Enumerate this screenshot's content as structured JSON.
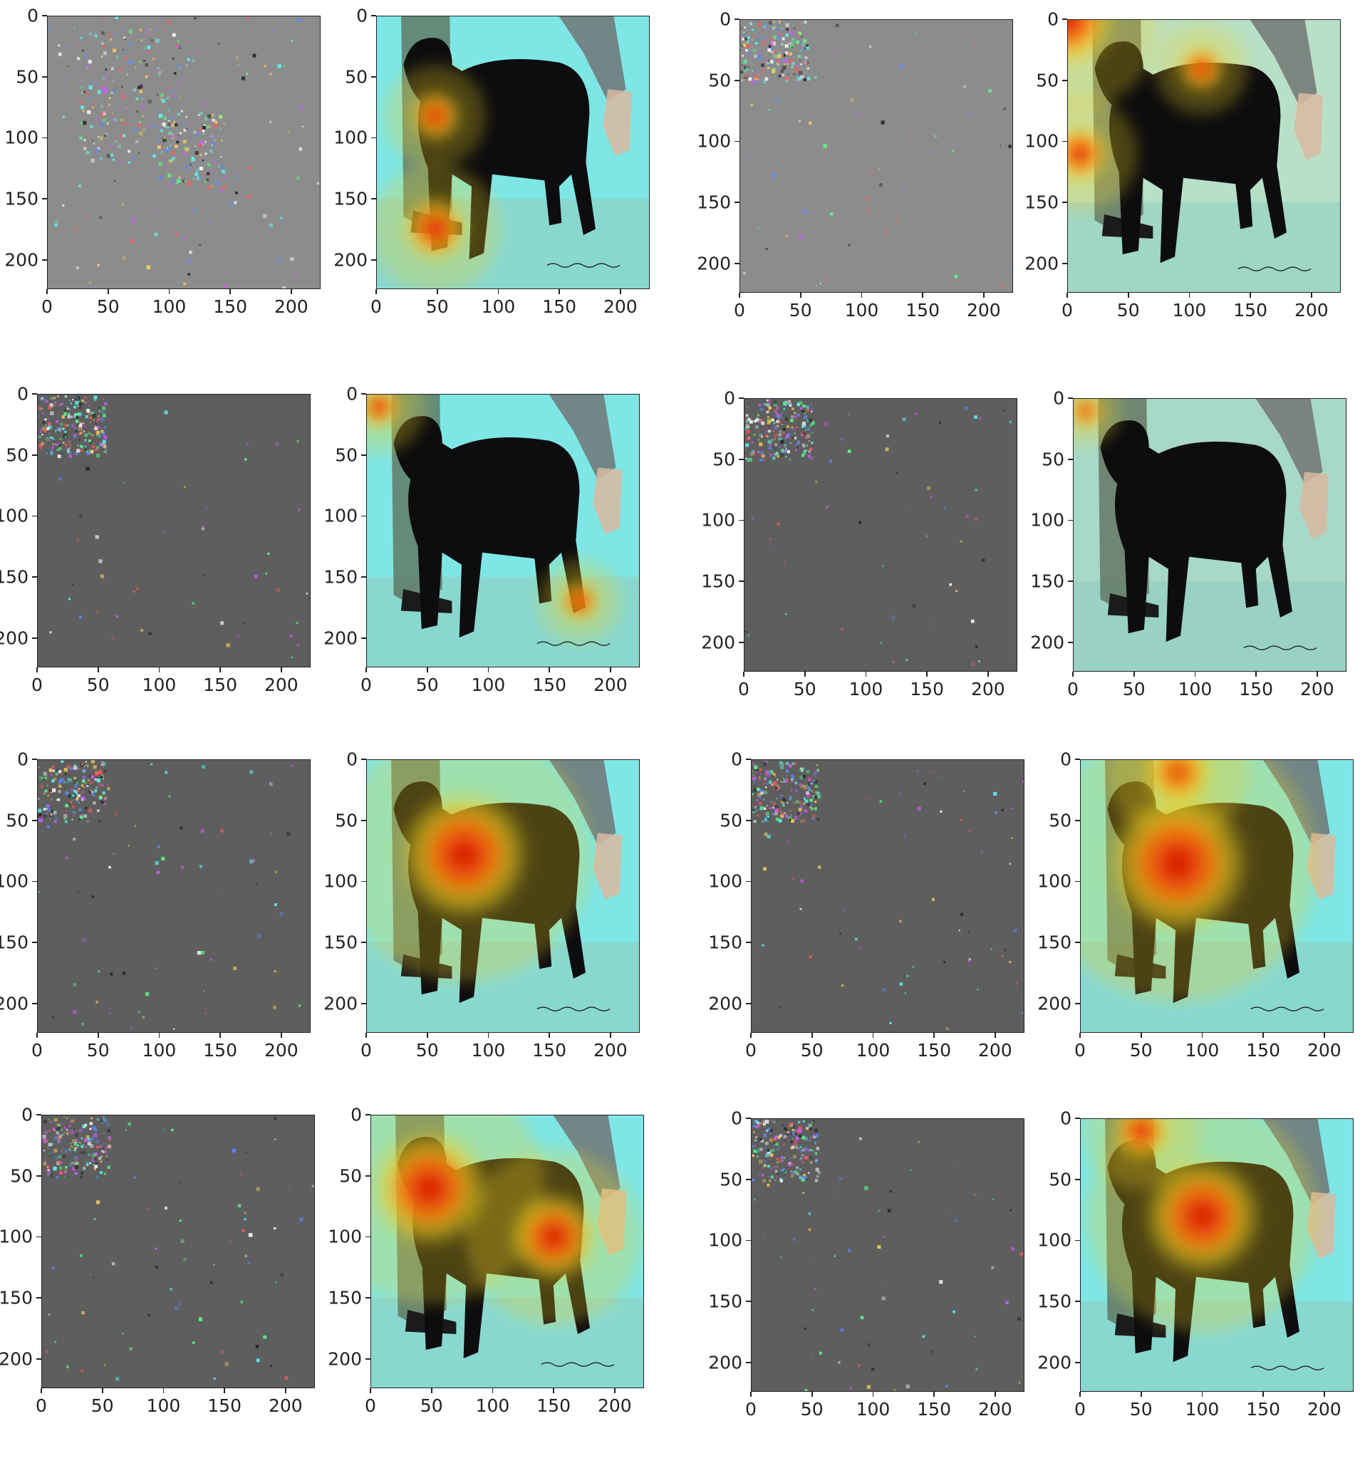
{
  "figure": {
    "panel_kinds": [
      "gradient-noise",
      "heatmap-overlay"
    ],
    "axis_ticks": [
      "0",
      "50",
      "100",
      "150",
      "200"
    ],
    "axis_max": 224,
    "tick_values": [
      0,
      50,
      100,
      150,
      200
    ],
    "colors": {
      "noise_gray_light": "#8c8c8c",
      "noise_gray_dark": "#5e5e5e",
      "heat_red": "#d40000",
      "heat_yellow": "#f0d020",
      "heat_cyan": "#7fe6e6",
      "dog": "#0d0d0f",
      "floor": "#8fcfc2"
    },
    "rows": [
      {
        "pairs": [
          {
            "noise": {
              "shade": "light",
              "speckle": "spread"
            },
            "heatmap": {
              "hotspots": [
                [
                  48,
                  82,
                  22
                ],
                [
                  48,
                  175,
                  28
                ]
              ],
              "background": "cyan"
            }
          },
          {
            "noise": {
              "shade": "light",
              "speckle": "corner"
            },
            "heatmap": {
              "hotspots": [
                [
                  0,
                  0,
                  40
                ],
                [
                  110,
                  40,
                  20
                ],
                [
                  10,
                  110,
                  25
                ]
              ],
              "background": "mixed"
            }
          }
        ]
      },
      {
        "pairs": [
          {
            "noise": {
              "shade": "dark",
              "speckle": "corner"
            },
            "heatmap": {
              "hotspots": [
                [
                  10,
                  10,
                  20
                ],
                [
                  175,
                  170,
                  18
                ]
              ],
              "background": "cyan"
            }
          },
          {
            "noise": {
              "shade": "dark",
              "speckle": "corner"
            },
            "heatmap": {
              "hotspots": [
                [
                  10,
                  10,
                  15
                ]
              ],
              "background": "plain"
            }
          }
        ]
      },
      {
        "pairs": [
          {
            "noise": {
              "shade": "dark",
              "speckle": "corner"
            },
            "heatmap": {
              "hotspots": [
                [
                  80,
                  78,
                  55
                ]
              ],
              "background": "cyan"
            }
          },
          {
            "noise": {
              "shade": "dark",
              "speckle": "corner"
            },
            "heatmap": {
              "hotspots": [
                [
                  80,
                  10,
                  30
                ],
                [
                  80,
                  85,
                  60
                ]
              ],
              "background": "cyan"
            }
          }
        ]
      },
      {
        "pairs": [
          {
            "noise": {
              "shade": "dark",
              "speckle": "corner"
            },
            "heatmap": {
              "hotspots": [
                [
                  48,
                  60,
                  50
                ],
                [
                  150,
                  100,
                  38
                ]
              ],
              "background": "cyan"
            }
          },
          {
            "noise": {
              "shade": "dark",
              "speckle": "corner"
            },
            "heatmap": {
              "hotspots": [
                [
                  100,
                  80,
                  50
                ],
                [
                  50,
                  10,
                  25
                ]
              ],
              "background": "cyan"
            }
          }
        ]
      }
    ]
  }
}
